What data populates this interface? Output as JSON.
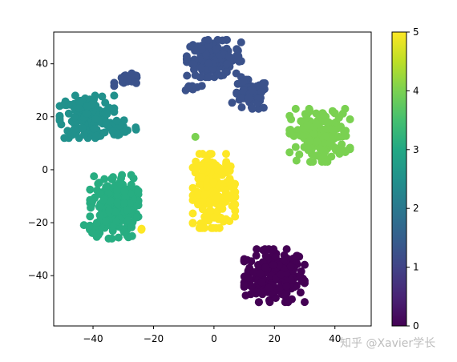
{
  "chart_data": {
    "type": "scatter",
    "title": "",
    "xlabel": "",
    "ylabel": "",
    "xlim": [
      -53,
      52
    ],
    "ylim": [
      -59,
      52
    ],
    "xticks": [
      -40,
      -20,
      0,
      20,
      40
    ],
    "yticks": [
      -40,
      -20,
      0,
      20,
      40
    ],
    "grid": false,
    "colormap": "viridis",
    "colorbar": {
      "min": 0,
      "max": 5,
      "ticks": [
        0,
        1,
        2,
        3,
        4,
        5
      ]
    },
    "clusters": [
      {
        "label": 0,
        "color": "#440154",
        "center": [
          20,
          -40
        ],
        "spread": [
          5,
          5
        ],
        "count": 220
      },
      {
        "label": 1,
        "color": "#3b528b",
        "center": [
          0,
          42
        ],
        "spread": [
          4.5,
          3.5
        ],
        "count": 150
      },
      {
        "label": 1,
        "color": "#3b528b",
        "center": [
          12,
          28
        ],
        "spread": [
          3,
          3
        ],
        "count": 60
      },
      {
        "label": 1,
        "color": "#3b528b",
        "center": [
          -28,
          34
        ],
        "spread": [
          2.5,
          1.2
        ],
        "count": 20
      },
      {
        "label": 1,
        "color": "#3b528b",
        "center": [
          -7,
          31
        ],
        "spread": [
          1.5,
          1
        ],
        "count": 10
      },
      {
        "label": 2,
        "color": "#21918c",
        "center": [
          -42,
          20
        ],
        "spread": [
          4.5,
          4
        ],
        "count": 150
      },
      {
        "label": 2,
        "color": "#21918c",
        "center": [
          -31,
          16
        ],
        "spread": [
          3,
          2
        ],
        "count": 30
      },
      {
        "label": 3,
        "color": "#27ad81",
        "center": [
          -33,
          -14
        ],
        "spread": [
          4,
          6
        ],
        "count": 200
      },
      {
        "label": 3,
        "color": "#27ad81",
        "center": [
          -40,
          -23
        ],
        "spread": [
          1.5,
          1.5
        ],
        "count": 15
      },
      {
        "label": 4,
        "color": "#7ad151",
        "center": [
          35,
          13
        ],
        "spread": [
          5,
          5
        ],
        "count": 170
      },
      {
        "label": 4,
        "color": "#7ad151",
        "center": [
          -6,
          13
        ],
        "spread": [
          0.3,
          0.3
        ],
        "count": 1
      },
      {
        "label": 5,
        "color": "#fde725",
        "center": [
          0,
          -8
        ],
        "spread": [
          3.5,
          7
        ],
        "count": 200
      },
      {
        "label": 5,
        "color": "#fde725",
        "center": [
          -24,
          -22
        ],
        "spread": [
          0.5,
          0.3
        ],
        "count": 2
      }
    ]
  },
  "watermark": "知乎 @Xavier学长"
}
